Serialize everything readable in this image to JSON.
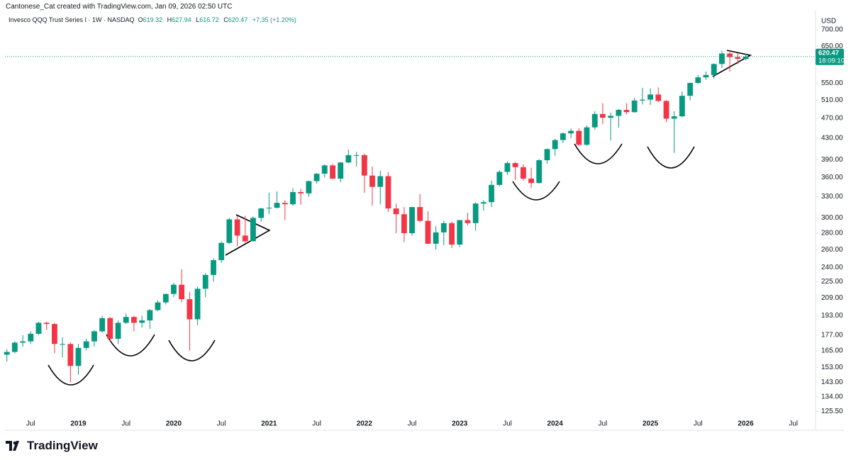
{
  "header": "Cantonese_Cat created with TradingView.com, Jan 09, 2026 02:50 UTC",
  "legend": {
    "symbol": "Invesco QQQ Trust Series I · 1W · NASDAQ",
    "open_label": "O",
    "open": 619.32,
    "high_label": "H",
    "high": 627.94,
    "low_label": "L",
    "low": 616.72,
    "close_label": "C",
    "close": 620.47,
    "change": "+7.35 (+1.20%)"
  },
  "logo": "TradingView",
  "chart_data": {
    "type": "candlestick",
    "currency": "USD",
    "log_scale": true,
    "grid": false,
    "up_color": "#089981",
    "down_color": "#f23645",
    "last_price": 620.47,
    "countdown": "18:09:10",
    "xlim": [
      2018.23,
      2026.71
    ],
    "xticks": [
      {
        "value": 2018.5,
        "label": "Jul"
      },
      {
        "value": 2019,
        "label": "2019"
      },
      {
        "value": 2019.5,
        "label": "Jul"
      },
      {
        "value": 2020,
        "label": "2020"
      },
      {
        "value": 2020.5,
        "label": "Jul"
      },
      {
        "value": 2021,
        "label": "2021"
      },
      {
        "value": 2021.5,
        "label": "Jul"
      },
      {
        "value": 2022,
        "label": "2022"
      },
      {
        "value": 2022.5,
        "label": "Jul"
      },
      {
        "value": 2023,
        "label": "2023"
      },
      {
        "value": 2023.5,
        "label": "Jul"
      },
      {
        "value": 2024,
        "label": "2024"
      },
      {
        "value": 2024.5,
        "label": "Jul"
      },
      {
        "value": 2025,
        "label": "2025"
      },
      {
        "value": 2025.5,
        "label": "Jul"
      },
      {
        "value": 2026,
        "label": "2026"
      },
      {
        "value": 2026.5,
        "label": "Jul"
      }
    ],
    "ylim": [
      116,
      751
    ],
    "yticks": [
      {
        "value": 125.5,
        "label": "125.50"
      },
      {
        "value": 134,
        "label": "134.00"
      },
      {
        "value": 143,
        "label": "143.00"
      },
      {
        "value": 153,
        "label": "153.00"
      },
      {
        "value": 165,
        "label": "165.00"
      },
      {
        "value": 177,
        "label": "177.00"
      },
      {
        "value": 193,
        "label": "193.00"
      },
      {
        "value": 209,
        "label": "209.00"
      },
      {
        "value": 225,
        "label": "225.00"
      },
      {
        "value": 240,
        "label": "240.00"
      },
      {
        "value": 260,
        "label": "260.00"
      },
      {
        "value": 280,
        "label": "280.00"
      },
      {
        "value": 300,
        "label": "300.00"
      },
      {
        "value": 330,
        "label": "330.00"
      },
      {
        "value": 360,
        "label": "360.00"
      },
      {
        "value": 390,
        "label": "390.00"
      },
      {
        "value": 430,
        "label": "430.00"
      },
      {
        "value": 470,
        "label": "470.00"
      },
      {
        "value": 510,
        "label": "510.00"
      },
      {
        "value": 550,
        "label": "550.00"
      },
      {
        "value": 650,
        "label": "650.00"
      },
      {
        "value": 700,
        "label": "700.00"
      }
    ],
    "x": [
      2018.25,
      2018.333,
      2018.417,
      2018.5,
      2018.583,
      2018.667,
      2018.75,
      2018.833,
      2018.917,
      2019,
      2019.083,
      2019.167,
      2019.25,
      2019.333,
      2019.417,
      2019.5,
      2019.583,
      2019.667,
      2019.75,
      2019.833,
      2019.917,
      2020,
      2020.083,
      2020.167,
      2020.25,
      2020.333,
      2020.417,
      2020.5,
      2020.583,
      2020.667,
      2020.75,
      2020.833,
      2020.917,
      2021,
      2021.083,
      2021.167,
      2021.25,
      2021.333,
      2021.417,
      2021.5,
      2021.583,
      2021.667,
      2021.75,
      2021.833,
      2021.917,
      2022,
      2022.083,
      2022.167,
      2022.25,
      2022.333,
      2022.417,
      2022.5,
      2022.583,
      2022.667,
      2022.75,
      2022.833,
      2022.917,
      2023,
      2023.083,
      2023.167,
      2023.25,
      2023.333,
      2023.417,
      2023.5,
      2023.583,
      2023.667,
      2023.75,
      2023.833,
      2023.917,
      2024,
      2024.083,
      2024.167,
      2024.25,
      2024.333,
      2024.417,
      2024.5,
      2024.583,
      2024.667,
      2024.75,
      2024.833,
      2024.917,
      2025,
      2025.083,
      2025.167,
      2025.25,
      2025.333,
      2025.417,
      2025.5,
      2025.583,
      2025.667,
      2025.75,
      2025.833,
      2025.917,
      2026
    ],
    "open": [
      162,
      164,
      171,
      172,
      178,
      187,
      186,
      170,
      170,
      154,
      167,
      172,
      180,
      191,
      174,
      187,
      192,
      187,
      189,
      198,
      205,
      213,
      222,
      208,
      190,
      218,
      232,
      248,
      268,
      298,
      277,
      270,
      300,
      313,
      314,
      321,
      319,
      337,
      335,
      354,
      366,
      380,
      358,
      385,
      398,
      398,
      363,
      345,
      362,
      313,
      305,
      280,
      315,
      296,
      267,
      281,
      293,
      266,
      297,
      293,
      320,
      322,
      348,
      369,
      384,
      377,
      358,
      351,
      389,
      409,
      426,
      439,
      444,
      417,
      451,
      479,
      471,
      475,
      488,
      483,
      509,
      511,
      523,
      508,
      469,
      474,
      520,
      551,
      565,
      571,
      600,
      629,
      619,
      614
    ],
    "high": [
      166,
      172,
      177,
      180,
      188,
      188,
      187,
      175,
      171,
      170,
      174,
      181,
      193,
      192,
      189,
      195,
      193,
      193,
      199,
      207,
      213,
      224,
      238,
      215,
      220,
      234,
      250,
      270,
      300,
      303,
      303,
      302,
      314,
      336,
      338,
      325,
      343,
      342,
      355,
      367,
      382,
      383,
      386,
      408,
      404,
      401,
      378,
      371,
      369,
      320,
      315,
      315,
      334,
      309,
      289,
      296,
      295,
      297,
      307,
      322,
      325,
      355,
      372,
      387,
      386,
      382,
      376,
      391,
      410,
      428,
      441,
      449,
      449,
      455,
      485,
      503,
      482,
      490,
      503,
      515,
      539,
      538,
      540,
      510,
      485,
      530,
      552,
      571,
      580,
      602,
      637,
      637,
      630,
      628
    ],
    "low": [
      157,
      163,
      168,
      170,
      177,
      181,
      163,
      160,
      143,
      148,
      165,
      168,
      179,
      172,
      170,
      186,
      180,
      183,
      182,
      197,
      203,
      210,
      205,
      165,
      185,
      210,
      225,
      245,
      267,
      264,
      268,
      270,
      295,
      305,
      313,
      297,
      317,
      318,
      330,
      350,
      360,
      357,
      352,
      384,
      378,
      336,
      317,
      319,
      308,
      280,
      269,
      277,
      294,
      267,
      260,
      265,
      262,
      263,
      290,
      283,
      310,
      315,
      346,
      364,
      356,
      355,
      343,
      350,
      383,
      397,
      420,
      430,
      414,
      415,
      447,
      458,
      425,
      450,
      478,
      482,
      500,
      499,
      505,
      462,
      402,
      472,
      509,
      549,
      559,
      562,
      589,
      580,
      600,
      610
    ],
    "close": [
      164,
      171,
      172,
      178,
      187,
      186,
      170,
      170,
      154,
      167,
      172,
      180,
      191,
      174,
      187,
      192,
      187,
      189,
      198,
      205,
      213,
      222,
      208,
      190,
      218,
      232,
      248,
      268,
      298,
      277,
      270,
      300,
      313,
      314,
      321,
      319,
      337,
      335,
      354,
      366,
      380,
      358,
      385,
      398,
      398,
      363,
      345,
      362,
      313,
      305,
      280,
      315,
      296,
      267,
      281,
      293,
      266,
      297,
      293,
      320,
      322,
      348,
      369,
      384,
      377,
      358,
      351,
      389,
      409,
      426,
      439,
      444,
      417,
      451,
      479,
      471,
      475,
      488,
      483,
      509,
      511,
      523,
      508,
      469,
      474,
      520,
      551,
      565,
      571,
      600,
      629,
      619,
      614,
      620.47
    ]
  }
}
